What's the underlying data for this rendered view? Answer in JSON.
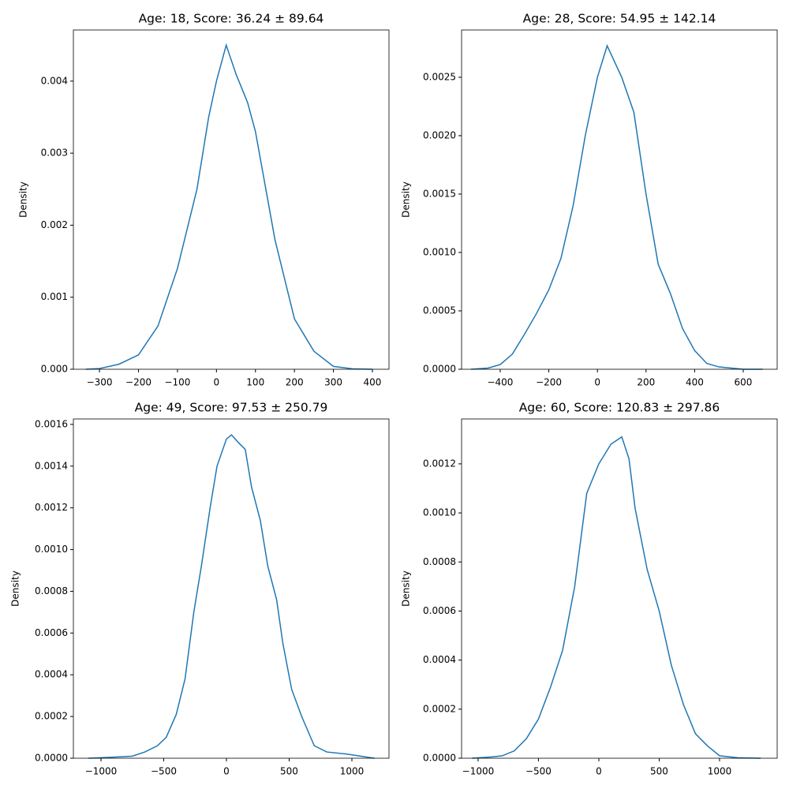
{
  "chart_data": [
    {
      "type": "line",
      "title": "Age: 18, Score: 36.24 ± 89.64",
      "ylabel": "Density",
      "color": "#1f77b4",
      "x": [
        -335,
        -300,
        -250,
        -200,
        -150,
        -100,
        -50,
        -20,
        0,
        25,
        50,
        80,
        100,
        150,
        200,
        250,
        300,
        350,
        400
      ],
      "series": [
        {
          "values": [
            0,
            1e-05,
            7e-05,
            0.0002,
            0.0006,
            0.0014,
            0.0025,
            0.0035,
            0.004,
            0.0045,
            0.0041,
            0.0037,
            0.0033,
            0.0018,
            0.0007,
            0.00025,
            4e-05,
            5e-06,
            0
          ]
        }
      ],
      "xlim": [
        -367,
        442.5
      ],
      "ylim": [
        0,
        0.00471
      ],
      "xticks": [
        {
          "value": -300,
          "label": "−300"
        },
        {
          "value": -200,
          "label": "−200"
        },
        {
          "value": -100,
          "label": "−100"
        },
        0,
        100,
        200,
        300,
        400
      ],
      "yticks": [
        {
          "value": 0,
          "label": "0.000"
        },
        {
          "value": 0.001,
          "label": "0.001"
        },
        {
          "value": 0.002,
          "label": "0.002"
        },
        {
          "value": 0.003,
          "label": "0.003"
        },
        {
          "value": 0.004,
          "label": "0.004"
        }
      ]
    },
    {
      "type": "line",
      "title": "Age: 28, Score: 54.95 ± 142.14",
      "ylabel": "Density",
      "color": "#1f77b4",
      "x": [
        -520,
        -450,
        -400,
        -350,
        -300,
        -250,
        -200,
        -150,
        -100,
        -50,
        0,
        40,
        100,
        150,
        200,
        250,
        300,
        350,
        400,
        450,
        500,
        600,
        680
      ],
      "series": [
        {
          "values": [
            0,
            1e-05,
            4e-05,
            0.00013,
            0.0003,
            0.00048,
            0.00068,
            0.00095,
            0.0014,
            0.002,
            0.0025,
            0.00277,
            0.0025,
            0.0022,
            0.0015,
            0.0009,
            0.00065,
            0.00035,
            0.00016,
            5e-05,
            2e-05,
            0,
            0
          ]
        }
      ],
      "xlim": [
        -559,
        739.6
      ],
      "ylim": [
        0,
        0.002905
      ],
      "xticks": [
        {
          "value": -400,
          "label": "−400"
        },
        {
          "value": -200,
          "label": "−200"
        },
        0,
        200,
        400,
        600
      ],
      "yticks": [
        {
          "value": 0,
          "label": "0.0000"
        },
        {
          "value": 0.0005,
          "label": "0.0005"
        },
        {
          "value": 0.001,
          "label": "0.0010"
        },
        {
          "value": 0.0015,
          "label": "0.0015"
        },
        {
          "value": 0.002,
          "label": "0.0020"
        },
        {
          "value": 0.0025,
          "label": "0.0025"
        }
      ]
    },
    {
      "type": "line",
      "title": "Age: 49, Score: 97.53 ± 250.79",
      "ylabel": "Density",
      "color": "#1f77b4",
      "x": [
        -1100,
        -900,
        -750,
        -650,
        -550,
        -480,
        -400,
        -330,
        -260,
        -200,
        -130,
        -75,
        0,
        40,
        100,
        150,
        200,
        270,
        330,
        400,
        450,
        520,
        600,
        700,
        800,
        960,
        1180
      ],
      "series": [
        {
          "values": [
            0,
            5e-06,
            1e-05,
            3e-05,
            6e-05,
            0.0001,
            0.00021,
            0.00038,
            0.0007,
            0.00092,
            0.0012,
            0.0014,
            0.00153,
            0.00155,
            0.00151,
            0.00148,
            0.0013,
            0.00114,
            0.00092,
            0.00076,
            0.00055,
            0.00033,
            0.0002,
            6e-05,
            3e-05,
            2e-05,
            0
          ]
        }
      ],
      "xlim": [
        -1220,
        1295.6
      ],
      "ylim": [
        0,
        0.001626
      ],
      "xticks": [
        {
          "value": -1000,
          "label": "−1000"
        },
        {
          "value": -500,
          "label": "−500"
        },
        0,
        500,
        1000
      ],
      "yticks": [
        {
          "value": 0,
          "label": "0.0000"
        },
        {
          "value": 0.0002,
          "label": "0.0002"
        },
        {
          "value": 0.0004,
          "label": "0.0004"
        },
        {
          "value": 0.0006,
          "label": "0.0006"
        },
        {
          "value": 0.0008,
          "label": "0.0008"
        },
        {
          "value": 0.001,
          "label": "0.0010"
        },
        {
          "value": 0.0012,
          "label": "0.0012"
        },
        {
          "value": 0.0014,
          "label": "0.0014"
        },
        {
          "value": 0.0016,
          "label": "0.0016"
        }
      ]
    },
    {
      "type": "line",
      "title": "Age: 60, Score: 120.83 ± 297.86",
      "ylabel": "Density",
      "color": "#1f77b4",
      "x": [
        -1050,
        -900,
        -800,
        -700,
        -600,
        -500,
        -400,
        -300,
        -200,
        -100,
        0,
        100,
        190,
        250,
        300,
        400,
        500,
        600,
        700,
        800,
        900,
        1000,
        1150,
        1340
      ],
      "series": [
        {
          "values": [
            0,
            5e-06,
            1e-05,
            3e-05,
            8e-05,
            0.00016,
            0.00029,
            0.00044,
            0.0007,
            0.00108,
            0.0012,
            0.00128,
            0.00131,
            0.00122,
            0.00102,
            0.00077,
            0.0006,
            0.00038,
            0.00022,
            0.0001,
            5e-05,
            1e-05,
            2e-06,
            0
          ]
        }
      ],
      "xlim": [
        -1137,
        1477
      ],
      "ylim": [
        0,
        0.001383
      ],
      "xticks": [
        {
          "value": -1000,
          "label": "−1000"
        },
        {
          "value": -500,
          "label": "−500"
        },
        0,
        500,
        1000
      ],
      "yticks": [
        {
          "value": 0,
          "label": "0.0000"
        },
        {
          "value": 0.0002,
          "label": "0.0002"
        },
        {
          "value": 0.0004,
          "label": "0.0004"
        },
        {
          "value": 0.0006,
          "label": "0.0006"
        },
        {
          "value": 0.0008,
          "label": "0.0008"
        },
        {
          "value": 0.001,
          "label": "0.0010"
        },
        {
          "value": 0.0012,
          "label": "0.0012"
        }
      ]
    }
  ]
}
